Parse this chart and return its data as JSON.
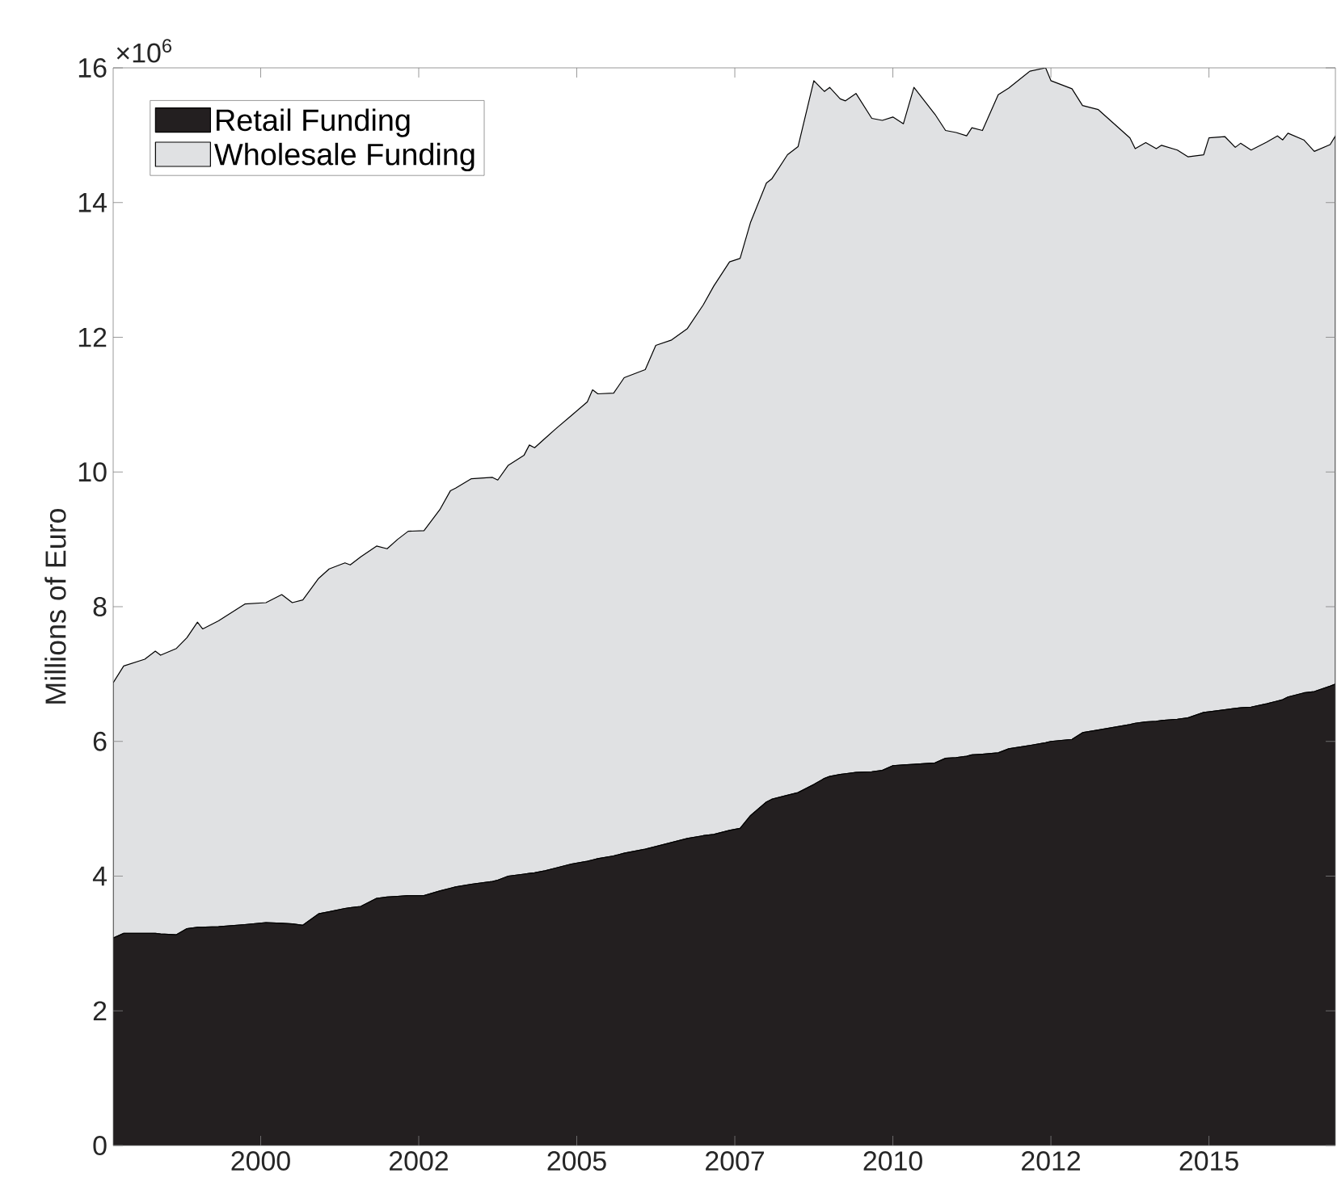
{
  "chart_data": {
    "type": "area",
    "stacked": true,
    "ylabel": "Millions of Euro",
    "annotations": [
      "×10$^{6}$"
    ],
    "legend": "top left",
    "xlim": [
      "1997-09",
      "2017-01"
    ],
    "ylim": [
      0,
      16
    ],
    "yticks": [
      0,
      2,
      4,
      6,
      8,
      10,
      12,
      14,
      16
    ],
    "xticks": [
      {
        "value": "2000-01",
        "label": "2000"
      },
      {
        "value": "2002-07",
        "label": "2002"
      },
      {
        "value": "2005-01",
        "label": "2005"
      },
      {
        "value": "2007-07",
        "label": "2007"
      },
      {
        "value": "2010-01",
        "label": "2010"
      },
      {
        "value": "2012-07",
        "label": "2012"
      },
      {
        "value": "2015-01",
        "label": "2015"
      }
    ],
    "x": [
      "1997-09",
      "1997-11",
      "1998-03",
      "1998-05",
      "1998-06",
      "1998-09",
      "1998-11",
      "1999-01",
      "1999-02",
      "1999-05",
      "1999-10",
      "2000-02",
      "2000-05",
      "2000-07",
      "2000-09",
      "2000-12",
      "2001-02",
      "2001-05",
      "2001-06",
      "2001-08",
      "2001-11",
      "2002-01",
      "2002-03",
      "2002-05",
      "2002-08",
      "2002-11",
      "2003-01",
      "2003-02",
      "2003-05",
      "2003-09",
      "2003-10",
      "2003-12",
      "2004-03",
      "2004-04",
      "2004-05",
      "2004-07",
      "2004-09",
      "2004-12",
      "2005-03",
      "2005-04",
      "2005-05",
      "2005-08",
      "2005-10",
      "2006-02",
      "2006-04",
      "2006-07",
      "2006-10",
      "2007-01",
      "2007-03",
      "2007-06",
      "2007-08",
      "2007-10",
      "2008-01",
      "2008-02",
      "2008-05",
      "2008-07",
      "2008-10",
      "2008-12",
      "2009-01",
      "2009-03",
      "2009-04",
      "2009-06",
      "2009-09",
      "2009-11",
      "2010-01",
      "2010-03",
      "2010-05",
      "2010-09",
      "2010-11",
      "2011-01",
      "2011-03",
      "2011-04",
      "2011-06",
      "2011-09",
      "2011-11",
      "2012-03",
      "2012-06",
      "2012-07",
      "2012-11",
      "2013-01",
      "2013-04",
      "2013-07",
      "2013-10",
      "2013-11",
      "2014-01",
      "2014-03",
      "2014-04",
      "2014-07",
      "2014-09",
      "2014-12",
      "2015-01",
      "2015-04",
      "2015-06",
      "2015-07",
      "2015-09",
      "2015-12",
      "2016-02",
      "2016-03",
      "2016-04",
      "2016-07",
      "2016-09",
      "2016-12",
      "2017-01"
    ],
    "series": [
      {
        "name": "Retail Funding",
        "color": "#231f20",
        "values": [
          3.08,
          3.15,
          3.15,
          3.15,
          3.14,
          3.13,
          3.22,
          3.24,
          3.24,
          3.25,
          3.28,
          3.31,
          3.3,
          3.29,
          3.27,
          3.44,
          3.47,
          3.52,
          3.53,
          3.55,
          3.67,
          3.69,
          3.7,
          3.71,
          3.71,
          3.78,
          3.82,
          3.84,
          3.88,
          3.92,
          3.94,
          4.0,
          4.03,
          4.04,
          4.05,
          4.08,
          4.12,
          4.18,
          4.22,
          4.24,
          4.26,
          4.3,
          4.34,
          4.4,
          4.44,
          4.5,
          4.56,
          4.6,
          4.62,
          4.68,
          4.71,
          4.9,
          5.1,
          5.14,
          5.2,
          5.24,
          5.36,
          5.45,
          5.48,
          5.51,
          5.52,
          5.54,
          5.55,
          5.57,
          5.64,
          5.65,
          5.66,
          5.68,
          5.75,
          5.76,
          5.78,
          5.8,
          5.81,
          5.83,
          5.89,
          5.94,
          5.98,
          6.0,
          6.03,
          6.13,
          6.17,
          6.21,
          6.25,
          6.27,
          6.29,
          6.3,
          6.31,
          6.33,
          6.35,
          6.43,
          6.44,
          6.47,
          6.49,
          6.5,
          6.51,
          6.56,
          6.6,
          6.62,
          6.66,
          6.72,
          6.74,
          6.82,
          6.85
        ]
      },
      {
        "name": "Wholesale Funding",
        "color": "#e0e1e3",
        "values": [
          3.79,
          3.97,
          4.07,
          4.19,
          4.14,
          4.25,
          4.32,
          4.53,
          4.43,
          4.54,
          4.76,
          4.75,
          4.88,
          4.77,
          4.83,
          4.98,
          5.09,
          5.13,
          5.09,
          5.19,
          5.23,
          5.17,
          5.3,
          5.41,
          5.42,
          5.66,
          5.9,
          5.92,
          6.02,
          6.0,
          5.94,
          6.1,
          6.22,
          6.36,
          6.31,
          6.42,
          6.52,
          6.66,
          6.82,
          6.98,
          6.9,
          6.87,
          7.06,
          7.12,
          7.44,
          7.46,
          7.57,
          7.88,
          8.14,
          8.44,
          8.46,
          8.81,
          9.19,
          9.21,
          9.51,
          9.59,
          10.45,
          10.2,
          10.23,
          10.03,
          9.99,
          10.08,
          9.7,
          9.65,
          9.63,
          9.52,
          10.05,
          9.63,
          9.32,
          9.28,
          9.21,
          9.31,
          9.26,
          9.77,
          9.81,
          10.01,
          10.02,
          9.81,
          9.66,
          9.31,
          9.21,
          8.96,
          8.71,
          8.53,
          8.6,
          8.5,
          8.54,
          8.45,
          8.33,
          8.28,
          8.52,
          8.51,
          8.33,
          8.38,
          8.27,
          8.34,
          8.39,
          8.31,
          8.37,
          8.21,
          8.02,
          8.04,
          8.14
        ]
      }
    ]
  }
}
